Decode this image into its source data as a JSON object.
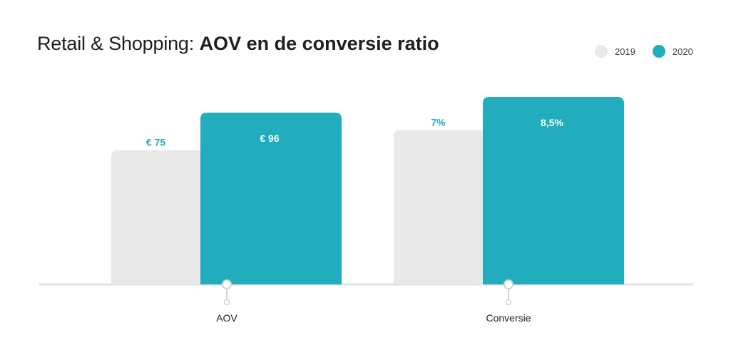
{
  "title_light": "Retail & Shopping:",
  "title_bold": "AOV en de conversie ratio",
  "legend": [
    {
      "name": "2019",
      "color": "#e9e9e9"
    },
    {
      "name": "2020",
      "color": "#21adbd"
    }
  ],
  "colors": {
    "series_2019": "#e9e9e9",
    "series_2020": "#21adbd",
    "label_on_light": "#21adbd",
    "label_on_dark": "#ffffff",
    "baseline": "#e3e3e3"
  },
  "chart_data": {
    "type": "bar",
    "title": "Retail & Shopping: AOV en de conversie ratio",
    "categories": [
      "AOV",
      "Conversie"
    ],
    "series": [
      {
        "name": "2019",
        "values": [
          75,
          7
        ],
        "labels": [
          "€ 75",
          "7%"
        ]
      },
      {
        "name": "2020",
        "values": [
          96,
          8.5
        ],
        "labels": [
          "€ 96",
          "8,5%"
        ]
      }
    ],
    "grid": false,
    "legend_position": "top-right"
  }
}
